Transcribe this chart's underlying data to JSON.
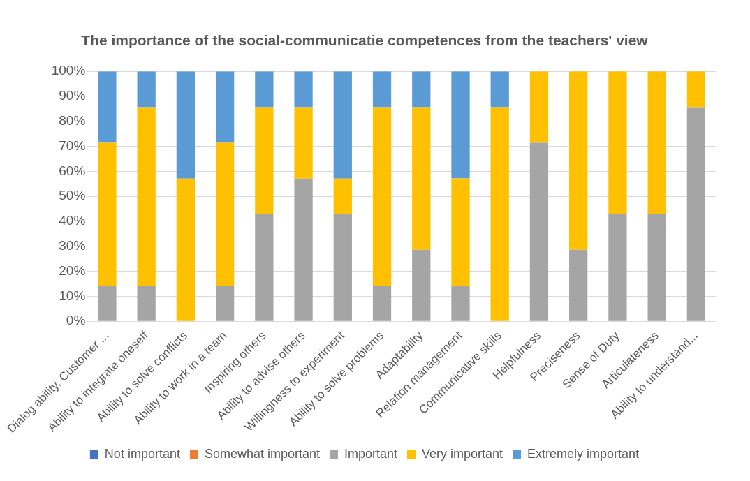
{
  "chart_data": {
    "type": "bar",
    "stacked": true,
    "title": "The importance of the social-communicatie competences from the teachers' view",
    "categories": [
      "Dialog ability, Customer ...",
      "Ability to integrate oneself",
      "Ability to solve conflicts",
      "Ability to work in a team",
      "Inspiring others",
      "Ability to advise others",
      "Willingness to experiment",
      "Ability to solve problems",
      "Adaptability",
      "Relation management",
      "Communicative skills",
      "Helpfulness",
      "Preciseness",
      "Sense of Duty",
      "Articulateness",
      "Ability to understand..."
    ],
    "series": [
      {
        "name": "Not important",
        "color": "#4472c4",
        "values": [
          0,
          0,
          0,
          0,
          0,
          0,
          0,
          0,
          0,
          0,
          0,
          0,
          0,
          0,
          0,
          0
        ]
      },
      {
        "name": "Somewhat important",
        "color": "#ed7d31",
        "values": [
          0,
          0,
          0,
          0,
          0,
          0,
          0,
          0,
          0,
          0,
          0,
          0,
          0,
          0,
          0,
          0
        ]
      },
      {
        "name": "Important",
        "color": "#a5a5a5",
        "values": [
          14.3,
          14.3,
          0,
          14.3,
          42.9,
          57.1,
          42.9,
          14.3,
          28.6,
          14.3,
          0,
          71.4,
          28.6,
          42.9,
          42.9,
          85.7
        ]
      },
      {
        "name": "Very important",
        "color": "#ffc000",
        "values": [
          57.1,
          71.4,
          57.1,
          57.1,
          42.8,
          28.6,
          14.2,
          71.4,
          57.1,
          42.9,
          85.7,
          28.6,
          71.4,
          57.1,
          57.1,
          14.3
        ]
      },
      {
        "name": "Extremely important",
        "color": "#5b9bd5",
        "values": [
          28.6,
          14.3,
          42.9,
          28.6,
          14.3,
          14.3,
          42.9,
          14.3,
          14.3,
          42.8,
          14.3,
          0,
          0,
          0,
          0,
          0
        ]
      }
    ],
    "ylim": [
      0,
      100
    ],
    "yticks": [
      {
        "value": 0,
        "label": "0%"
      },
      {
        "value": 10,
        "label": "10%"
      },
      {
        "value": 20,
        "label": "20%"
      },
      {
        "value": 30,
        "label": "30%"
      },
      {
        "value": 40,
        "label": "40%"
      },
      {
        "value": 50,
        "label": "50%"
      },
      {
        "value": 60,
        "label": "60%"
      },
      {
        "value": 70,
        "label": "70%"
      },
      {
        "value": 80,
        "label": "80%"
      },
      {
        "value": 90,
        "label": "90%"
      },
      {
        "value": 100,
        "label": "100%"
      }
    ],
    "grid": "y",
    "legend": "bottom"
  }
}
